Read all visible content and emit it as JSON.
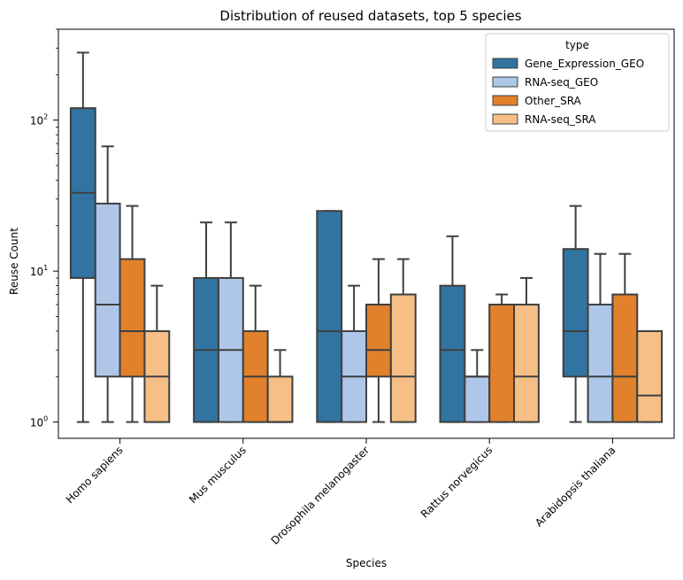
{
  "chart_data": {
    "type": "box",
    "title": "Distribution of reused datasets, top 5 species",
    "xlabel": "Species",
    "ylabel": "Reuse Count",
    "yscale": "log",
    "ylim": [
      0.78,
      400
    ],
    "yticks": [
      {
        "value": 1,
        "base": "10",
        "exp": "0"
      },
      {
        "value": 10,
        "base": "10",
        "exp": "1"
      },
      {
        "value": 100,
        "base": "10",
        "exp": "2"
      }
    ],
    "categories": [
      "Homo sapiens",
      "Mus musculus",
      "Drosophila melanogaster",
      "Rattus norvegicus",
      "Arabidopsis thaliana"
    ],
    "legend": {
      "title": "type",
      "position": "top-right"
    },
    "series": [
      {
        "name": "Gene_Expression_GEO",
        "color": "#3274a1",
        "boxes": [
          {
            "whislo": 1,
            "q1": 9,
            "med": 33,
            "q3": 120,
            "whishi": 280
          },
          {
            "whislo": 1,
            "q1": 1,
            "med": 3,
            "q3": 9,
            "whishi": 21
          },
          {
            "whislo": 1,
            "q1": 1,
            "med": 4,
            "q3": 25,
            "whishi": 25
          },
          {
            "whislo": 1,
            "q1": 1,
            "med": 3,
            "q3": 8,
            "whishi": 17
          },
          {
            "whislo": 1,
            "q1": 2,
            "med": 4,
            "q3": 14,
            "whishi": 27
          }
        ]
      },
      {
        "name": "RNA-seq_GEO",
        "color": "#aec7e8",
        "boxes": [
          {
            "whislo": 1,
            "q1": 2,
            "med": 6,
            "q3": 28,
            "whishi": 67
          },
          {
            "whislo": 1,
            "q1": 1,
            "med": 3,
            "q3": 9,
            "whishi": 21
          },
          {
            "whislo": 1,
            "q1": 1,
            "med": 2,
            "q3": 4,
            "whishi": 8
          },
          {
            "whislo": 1,
            "q1": 1,
            "med": 2,
            "q3": 2,
            "whishi": 3
          },
          {
            "whislo": 1,
            "q1": 1,
            "med": 2,
            "q3": 6,
            "whishi": 13
          }
        ]
      },
      {
        "name": "Other_SRA",
        "color": "#e1812c",
        "boxes": [
          {
            "whislo": 1,
            "q1": 2,
            "med": 4,
            "q3": 12,
            "whishi": 27
          },
          {
            "whislo": 1,
            "q1": 1,
            "med": 2,
            "q3": 4,
            "whishi": 8
          },
          {
            "whislo": 1,
            "q1": 2,
            "med": 3,
            "q3": 6,
            "whishi": 12
          },
          {
            "whislo": 1,
            "q1": 1,
            "med": 6,
            "q3": 6,
            "whishi": 7
          },
          {
            "whislo": 1,
            "q1": 1,
            "med": 2,
            "q3": 7,
            "whishi": 13
          }
        ]
      },
      {
        "name": "RNA-seq_SRA",
        "color": "#f5bf86",
        "boxes": [
          {
            "whislo": 1,
            "q1": 1,
            "med": 2,
            "q3": 4,
            "whishi": 8
          },
          {
            "whislo": 1,
            "q1": 1,
            "med": 1,
            "q3": 2,
            "whishi": 3
          },
          {
            "whislo": 1,
            "q1": 1,
            "med": 2,
            "q3": 7,
            "whishi": 12
          },
          {
            "whislo": 1,
            "q1": 1,
            "med": 2,
            "q3": 6,
            "whishi": 9
          },
          {
            "whislo": 1,
            "q1": 1,
            "med": 1.5,
            "q3": 4,
            "whishi": 4
          }
        ]
      }
    ]
  }
}
